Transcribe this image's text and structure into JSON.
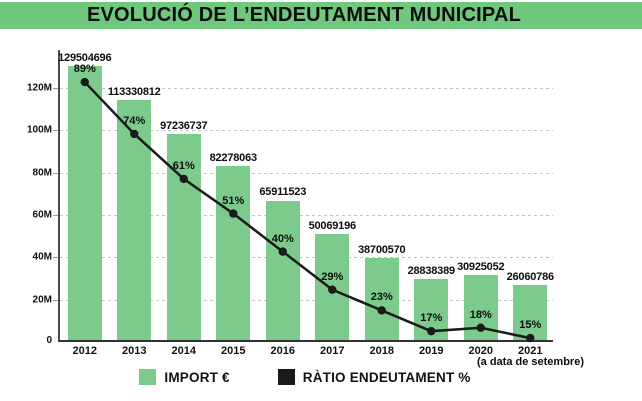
{
  "title": "EVOLUCIÓ DE L’ENDEUTAMENT MUNICIPAL",
  "footnote": "(a data de setembre)",
  "colors": {
    "banner_green": "#6fc87e",
    "bar_green": "#7dcb8c",
    "line_black": "#1a1a1a",
    "grid_gray": "#c7c7c7",
    "axis_dark": "#333333"
  },
  "legend": [
    {
      "label": "IMPORT €",
      "color": "#7dcb8c"
    },
    {
      "label": "RÀTIO ENDEUTAMENT %",
      "color": "#1a1a1a"
    }
  ],
  "chart_data": {
    "type": "bar",
    "categories": [
      "2012",
      "2013",
      "2014",
      "2015",
      "2016",
      "2017",
      "2018",
      "2019",
      "2020",
      "2021"
    ],
    "series": [
      {
        "name": "IMPORT €",
        "type": "bar",
        "values": [
          129504696,
          113330812,
          97236737,
          82278063,
          65911523,
          50069196,
          38700570,
          28838389,
          30925052,
          26060786
        ],
        "labels": [
          "129504696",
          "113330812",
          "97236737",
          "82278063",
          "65911523",
          "50069196",
          "38700570",
          "28838389",
          "30925052",
          "26060786"
        ]
      },
      {
        "name": "RÀTIO ENDEUTAMENT %",
        "type": "line",
        "values": [
          89,
          74,
          61,
          51,
          40,
          29,
          23,
          17,
          18,
          15
        ],
        "labels": [
          "89%",
          "74%",
          "61%",
          "51%",
          "40%",
          "29%",
          "23%",
          "17%",
          "18%",
          "15%"
        ]
      }
    ],
    "y_axis": {
      "tick_labels": [
        "120M",
        "100M",
        "80M",
        "60M",
        "40M",
        "20M",
        "0"
      ],
      "tick_values_millions": [
        120,
        100,
        80,
        60,
        40,
        20,
        0
      ],
      "range_millions": [
        0,
        138
      ]
    },
    "grid": "dashed horizontal",
    "legend_position": "bottom",
    "title": "EVOLUCIÓ DE L’ENDEUTAMENT MUNICIPAL",
    "xlabel": "",
    "ylabel": ""
  }
}
